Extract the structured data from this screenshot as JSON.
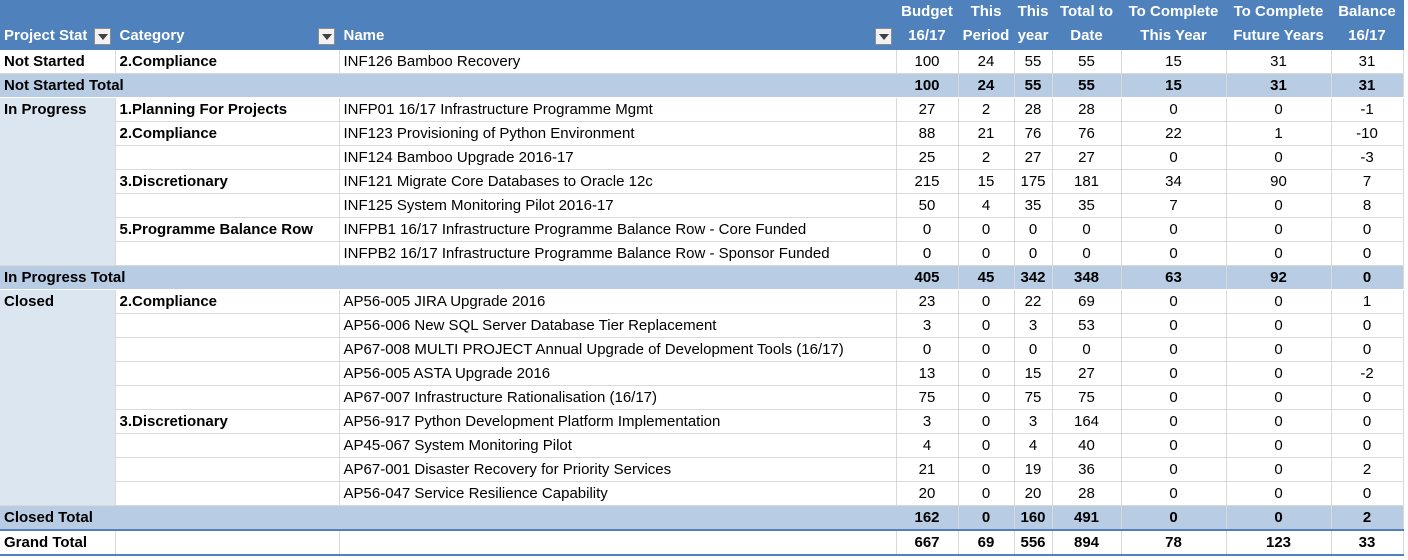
{
  "header": {
    "status": "Project Stat",
    "category": "Category",
    "name": "Name",
    "budget": [
      "Budget",
      "16/17"
    ],
    "this_period": [
      "This",
      "Period"
    ],
    "this_year": [
      "This",
      "year"
    ],
    "total_to_date": [
      "Total to",
      "Date"
    ],
    "to_complete_year": [
      "To Complete",
      "This Year"
    ],
    "to_complete_future": [
      "To Complete",
      "Future Years"
    ],
    "balance": [
      "Balance",
      "16/17"
    ]
  },
  "groups": {
    "not_started": {
      "status": "Not Started",
      "rows": [
        {
          "category": "2.Compliance",
          "name": "INF126 Bamboo Recovery",
          "values": [
            "100",
            "24",
            "55",
            "55",
            "15",
            "31",
            "31"
          ]
        }
      ],
      "total_label": "Not Started Total",
      "total": [
        "100",
        "24",
        "55",
        "55",
        "15",
        "31",
        "31"
      ]
    },
    "in_progress": {
      "status": "In Progress",
      "rows": [
        {
          "category": "1.Planning For Projects",
          "name": "INFP01 16/17 Infrastructure Programme Mgmt",
          "values": [
            "27",
            "2",
            "28",
            "28",
            "0",
            "0",
            "-1"
          ]
        },
        {
          "category": "2.Compliance",
          "name": "INF123 Provisioning of Python Environment",
          "values": [
            "88",
            "21",
            "76",
            "76",
            "22",
            "1",
            "-10"
          ]
        },
        {
          "category": "",
          "name": "INF124 Bamboo Upgrade 2016-17",
          "values": [
            "25",
            "2",
            "27",
            "27",
            "0",
            "0",
            "-3"
          ]
        },
        {
          "category": "3.Discretionary",
          "name": "INF121 Migrate Core Databases to Oracle 12c",
          "values": [
            "215",
            "15",
            "175",
            "181",
            "34",
            "90",
            "7"
          ]
        },
        {
          "category": "",
          "name": "INF125 System Monitoring Pilot 2016-17",
          "values": [
            "50",
            "4",
            "35",
            "35",
            "7",
            "0",
            "8"
          ]
        },
        {
          "category": "5.Programme Balance Row",
          "name": "INFPB1 16/17 Infrastructure Programme Balance Row - Core Funded",
          "values": [
            "0",
            "0",
            "0",
            "0",
            "0",
            "0",
            "0"
          ]
        },
        {
          "category": "",
          "name": "INFPB2 16/17 Infrastructure Programme Balance Row - Sponsor Funded",
          "values": [
            "0",
            "0",
            "0",
            "0",
            "0",
            "0",
            "0"
          ]
        }
      ],
      "total_label": "In Progress Total",
      "total": [
        "405",
        "45",
        "342",
        "348",
        "63",
        "92",
        "0"
      ]
    },
    "closed": {
      "status": "Closed",
      "rows": [
        {
          "category": "2.Compliance",
          "name": "AP56-005 JIRA Upgrade 2016",
          "values": [
            "23",
            "0",
            "22",
            "69",
            "0",
            "0",
            "1"
          ]
        },
        {
          "category": "",
          "name": "AP56-006 New SQL Server Database Tier Replacement",
          "values": [
            "3",
            "0",
            "3",
            "53",
            "0",
            "0",
            "0"
          ]
        },
        {
          "category": "",
          "name": "AP67-008 MULTI PROJECT Annual Upgrade of Development Tools (16/17)",
          "values": [
            "0",
            "0",
            "0",
            "0",
            "0",
            "0",
            "0"
          ]
        },
        {
          "category": "",
          "name": "AP56-005 ASTA Upgrade 2016",
          "values": [
            "13",
            "0",
            "15",
            "27",
            "0",
            "0",
            "-2"
          ]
        },
        {
          "category": "",
          "name": "AP67-007 Infrastructure Rationalisation (16/17)",
          "values": [
            "75",
            "0",
            "75",
            "75",
            "0",
            "0",
            "0"
          ]
        },
        {
          "category": "3.Discretionary",
          "name": "AP56-917 Python Development Platform Implementation",
          "values": [
            "3",
            "0",
            "3",
            "164",
            "0",
            "0",
            "0"
          ]
        },
        {
          "category": "",
          "name": "AP45-067 System Monitoring Pilot",
          "values": [
            "4",
            "0",
            "4",
            "40",
            "0",
            "0",
            "0"
          ]
        },
        {
          "category": "",
          "name": "AP67-001 Disaster Recovery for Priority Services",
          "values": [
            "21",
            "0",
            "19",
            "36",
            "0",
            "0",
            "2"
          ]
        },
        {
          "category": "",
          "name": "AP56-047 Service Resilience Capability",
          "values": [
            "20",
            "0",
            "20",
            "28",
            "0",
            "0",
            "0"
          ]
        }
      ],
      "total_label": "Closed Total",
      "total": [
        "162",
        "0",
        "160",
        "491",
        "0",
        "0",
        "2"
      ]
    }
  },
  "grand_total": {
    "label": "Grand Total",
    "values": [
      "667",
      "69",
      "556",
      "894",
      "78",
      "123",
      "33"
    ]
  },
  "colors": {
    "header": "#4f81bd",
    "status_band": "#dce6f1",
    "subtotal": "#b8cce4"
  }
}
